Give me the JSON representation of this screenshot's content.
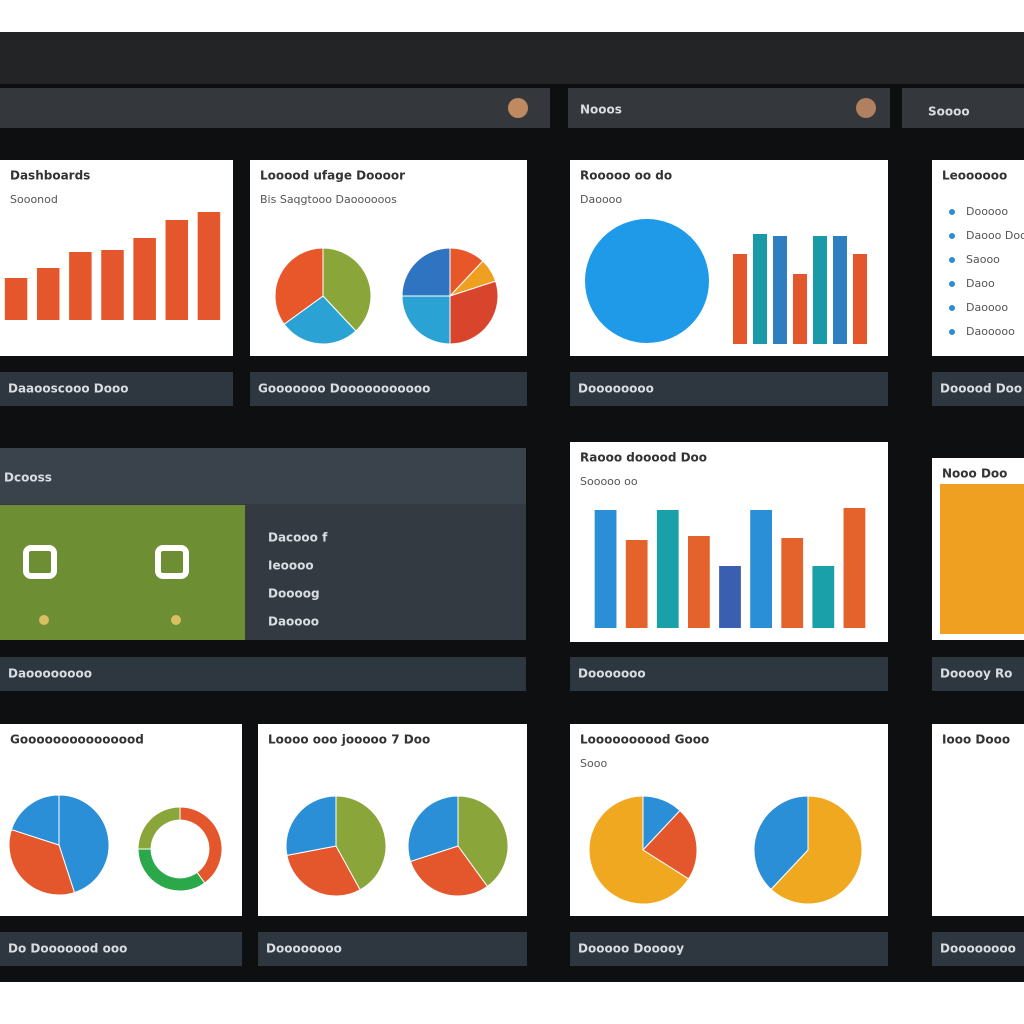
{
  "header": {
    "tabs": [
      "Nooos",
      "Soooo"
    ]
  },
  "panels": [
    {
      "title": "Dashboards",
      "subtitle": "Sooonod",
      "footer": "Daaooscooo Dooo",
      "charts": [
        {
          "type": "bar",
          "values": [
            42,
            52,
            68,
            70,
            82,
            100,
            108
          ],
          "colors": [
            "#e4562b"
          ]
        }
      ]
    },
    {
      "title": "Looood ufage Doooor",
      "subtitle": "Bis Saqgtooo Daoooooos",
      "footer": "Gooooooo Dooooooooooo",
      "charts": [
        {
          "type": "pie",
          "values": [
            38,
            27,
            35
          ],
          "colors": [
            "#8aa63a",
            "#2aa3d4",
            "#e8572a"
          ]
        },
        {
          "type": "pie",
          "values": [
            12,
            8,
            30,
            25,
            25
          ],
          "colors": [
            "#e8572a",
            "#f0a020",
            "#d8452c",
            "#2aa3d4",
            "#2f74c0"
          ]
        }
      ]
    },
    {
      "title": "Rooooo oo do",
      "subtitle": "Daoooo",
      "footer": "Doooooooo",
      "charts": [
        {
          "type": "bar",
          "values": [
            90,
            110,
            108,
            70,
            108,
            108,
            90
          ],
          "colors": [
            "#e4562b",
            "#1a9aa8",
            "#2f7ec0"
          ]
        }
      ]
    },
    {
      "title": "Leoooooo",
      "footer": "Dooood Doo",
      "items": [
        "Dooooo",
        "Daooo Doo",
        "Saooo",
        "Daoo",
        "Daoooo",
        "Daooooo"
      ]
    },
    {
      "title": "Dcooss",
      "footer": "Daoooooooo",
      "items": [
        "Dacooo f",
        "Ieoooo",
        "Doooog",
        "Daoooo"
      ]
    },
    {
      "title": "Raooo dooood Doo",
      "subtitle": "Sooooo oo",
      "footer": "Dooooooo",
      "charts": [
        {
          "type": "bar",
          "values": [
            118,
            88,
            118,
            92,
            62,
            118,
            90,
            62,
            120
          ],
          "colors": [
            "#2a8fd6",
            "#e4622b",
            "#1aa0a8",
            "#e4622b",
            "#3a5eb0"
          ]
        }
      ]
    },
    {
      "title": "Nooo Doo",
      "footer": "Dooooy Ro"
    },
    {
      "title": "Gooooooooooooood",
      "footer": "Do Dooooood ooo",
      "charts": [
        {
          "type": "pie",
          "values": [
            45,
            35,
            20
          ],
          "colors": [
            "#2a8fd6",
            "#e4562b",
            "#2a8fd6"
          ]
        },
        {
          "type": "donut",
          "values": [
            40,
            35,
            25
          ],
          "colors": [
            "#e4562b",
            "#2aa84a",
            "#8aa63a"
          ]
        }
      ]
    },
    {
      "title": "Loooo ooo jooooo 7 Doo",
      "footer": "Doooooooo",
      "charts": [
        {
          "type": "pie",
          "values": [
            42,
            30,
            28
          ],
          "colors": [
            "#8aa63a",
            "#e4562b",
            "#2a8fd6"
          ]
        },
        {
          "type": "pie",
          "values": [
            40,
            30,
            30
          ],
          "colors": [
            "#8aa63a",
            "#e4562b",
            "#2a8fd6"
          ]
        }
      ]
    },
    {
      "title": "Loooooooood Gooo",
      "subtitle": "Sooo",
      "footer": "Dooooo Dooooy",
      "charts": [
        {
          "type": "pie",
          "values": [
            12,
            22,
            66
          ],
          "colors": [
            "#2a8fd6",
            "#e4562b",
            "#f0a820"
          ]
        },
        {
          "type": "pie",
          "values": [
            62,
            38
          ],
          "colors": [
            "#f0a820",
            "#2a8fd6"
          ]
        }
      ]
    },
    {
      "title": "Iooo Dooo",
      "footer": "Doooooooo"
    }
  ]
}
